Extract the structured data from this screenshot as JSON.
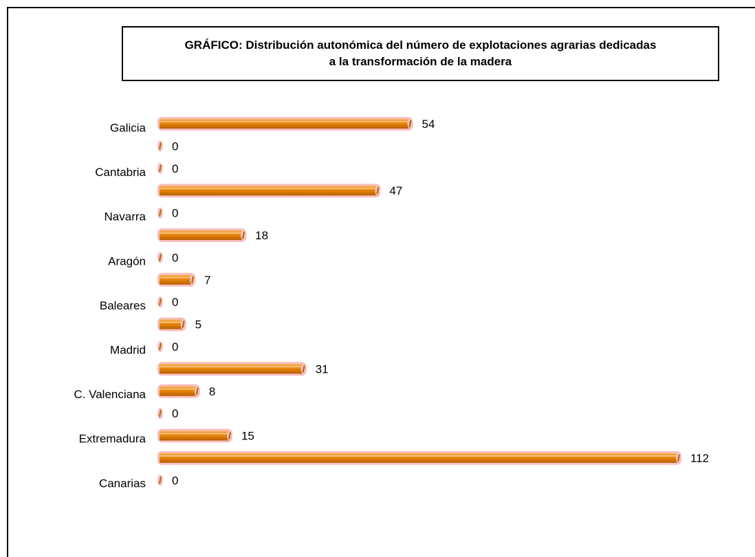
{
  "title": {
    "line1": "GRÁFICO: Distribución autonómica del número de explotaciones agrarias dedicadas",
    "line2": "a la transformación de la madera"
  },
  "colors": {
    "bar_fill": "#e8870e",
    "bar_highlight": "#f6b25a",
    "bar_shadow": "#b86000",
    "bar_halo": "#f7c0c0"
  },
  "chart_data": {
    "type": "bar",
    "orientation": "horizontal",
    "category_labels_shown": [
      "Galicia",
      "Cantabria",
      "Navarra",
      "Aragón",
      "Baleares",
      "Madrid",
      "C. Valenciana",
      "Extremadura",
      "Canarias"
    ],
    "values": [
      54,
      0,
      0,
      47,
      0,
      18,
      0,
      7,
      0,
      5,
      0,
      31,
      8,
      0,
      15,
      112,
      0
    ],
    "xlim": [
      0,
      112
    ],
    "grid": false,
    "legend": "none"
  }
}
